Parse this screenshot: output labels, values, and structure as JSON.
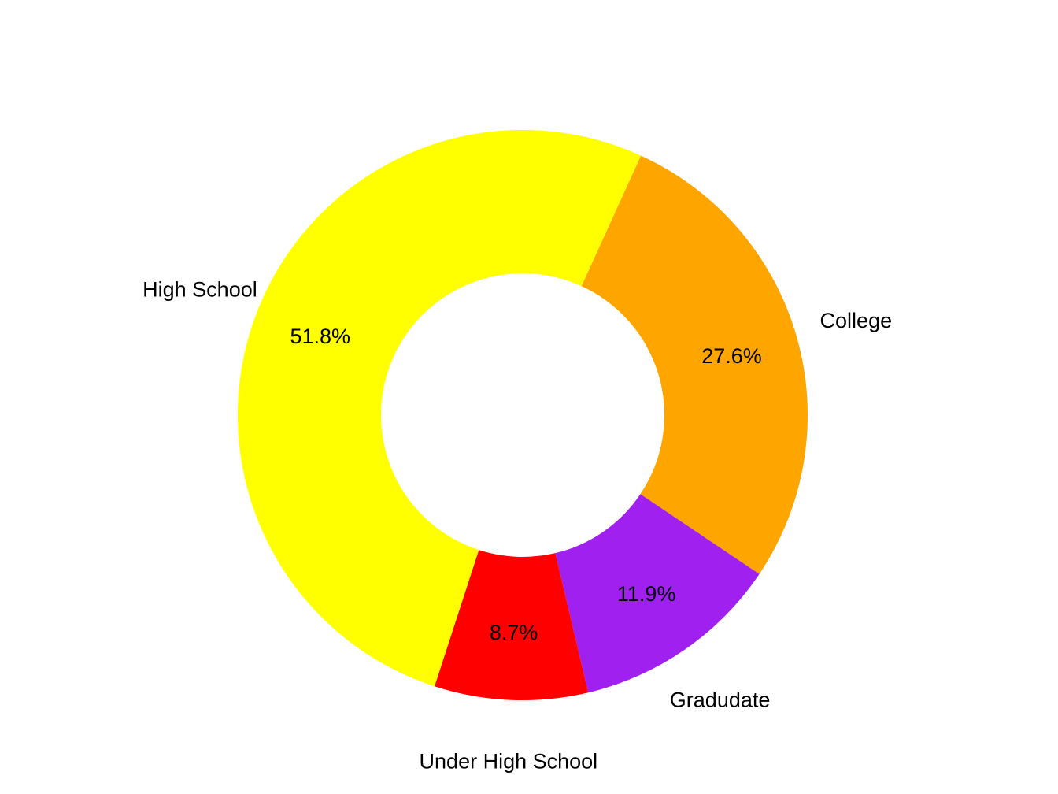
{
  "chart_data": {
    "type": "pie",
    "donut": true,
    "start_angle_deg": 65.5,
    "direction": "clockwise",
    "slices": [
      {
        "name": "College",
        "value": 27.6,
        "label": "27.6%",
        "color": "#FFA500"
      },
      {
        "name": "Gradudate",
        "value": 11.9,
        "label": "11.9%",
        "color": "#A020F0"
      },
      {
        "name": "Under High School",
        "value": 8.7,
        "label": "8.7%",
        "color": "#FF0000"
      },
      {
        "name": "High School",
        "value": 51.8,
        "label": "51.8%",
        "color": "#FFFF00"
      }
    ],
    "legend": "none"
  }
}
